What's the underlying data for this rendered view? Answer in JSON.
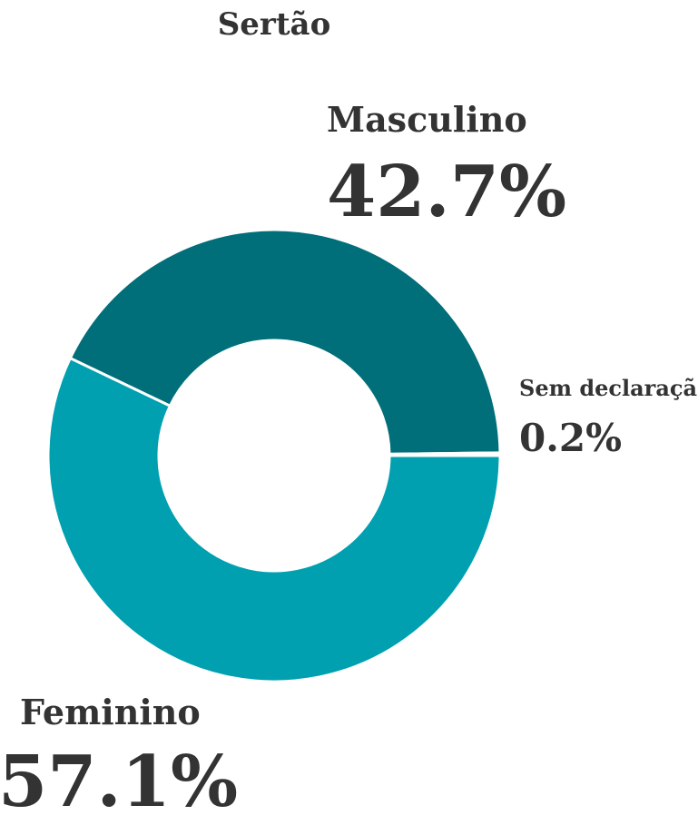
{
  "chart_data": {
    "type": "donut",
    "title": "Sertão",
    "categories": [
      "Feminino",
      "Masculino",
      "Sem declaração"
    ],
    "values": [
      57.1,
      42.7,
      0.2
    ],
    "value_labels": [
      "57.1%",
      "42.7%",
      "0.2%"
    ],
    "colors": [
      "#00a0b0",
      "#006f7a",
      "#7fc8d0"
    ]
  }
}
